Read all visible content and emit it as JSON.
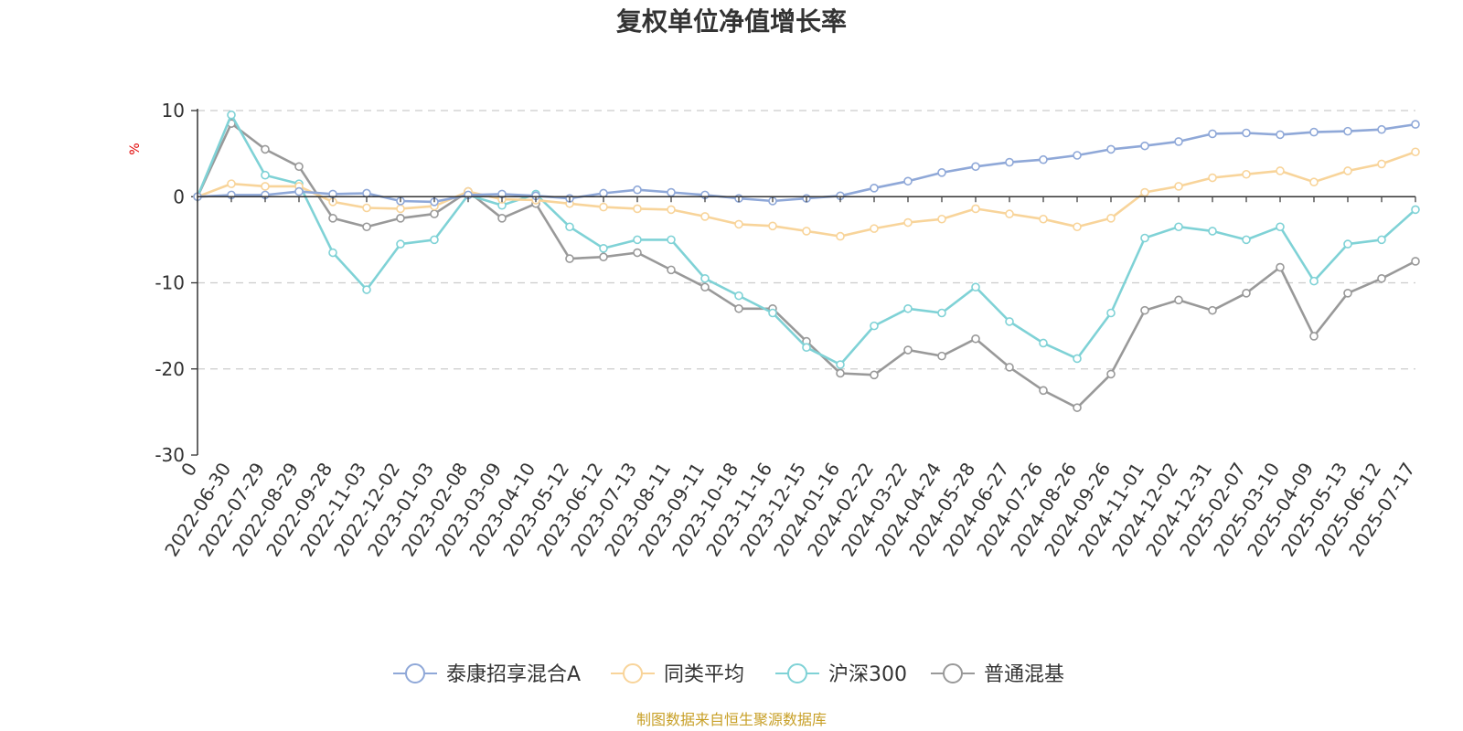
{
  "colors": {
    "fund": "#8fa8d8",
    "peer": "#f8d49a",
    "hs300": "#7fd2d6",
    "mixed": "#999999",
    "source": "#c8a028",
    "unit": "#e00000"
  },
  "chart_data": {
    "type": "line",
    "title": "复权单位净值增长率",
    "ylabel": "%",
    "ylim": [
      -30,
      10
    ],
    "yticks": [
      10,
      0,
      -10,
      -20,
      -30
    ],
    "grid": true,
    "legend_position": "bottom",
    "source": "制图数据来自恒生聚源数据库",
    "x_tick_labels": [
      "0",
      "2022-06-30",
      "2022-07-29",
      "2022-08-29",
      "2022-09-28",
      "2022-11-03",
      "2022-12-02",
      "2023-01-03",
      "2023-02-08",
      "2023-03-09",
      "2023-04-10",
      "2023-05-12",
      "2023-06-12",
      "2023-07-13",
      "2023-08-11",
      "2023-09-11",
      "2023-10-18",
      "2023-11-16",
      "2023-12-15",
      "2024-01-16",
      "2024-02-22",
      "2024-03-22",
      "2024-04-24",
      "2024-05-28",
      "2024-06-27",
      "2024-07-26",
      "2024-08-26",
      "2024-09-26",
      "2024-11-01",
      "2024-12-02",
      "2024-12-31",
      "2025-02-07",
      "2025-03-10",
      "2025-04-09",
      "2025-05-13",
      "2025-06-12",
      "2025-07-17"
    ],
    "x": [
      "0",
      "2022-06-30",
      "2022-07-29",
      "2022-08-29",
      "2022-09-28",
      "2022-11-03",
      "2022-12-02",
      "2023-01-03",
      "2023-02-08",
      "2023-03-09",
      "2023-04-10",
      "2023-05-12",
      "2023-06-12",
      "2023-07-13",
      "2023-08-11",
      "2023-09-11",
      "2023-10-18",
      "2023-11-16",
      "2023-12-15",
      "2024-01-16",
      "2024-02-22",
      "2024-03-22",
      "2024-04-24",
      "2024-05-28",
      "2024-06-27",
      "2024-07-26",
      "2024-08-26",
      "2024-09-26",
      "2024-11-01",
      "2024-12-02",
      "2024-12-31",
      "2025-02-07",
      "2025-03-10",
      "2025-04-09",
      "2025-05-13",
      "2025-06-12",
      "2025-07-17"
    ],
    "series": [
      {
        "name": "泰康招享混合A",
        "values": [
          0,
          0.2,
          0.2,
          0.6,
          0.3,
          0.4,
          -0.5,
          -0.6,
          0.2,
          0.3,
          0.1,
          -0.2,
          0.4,
          0.8,
          0.5,
          0.2,
          -0.2,
          -0.5,
          -0.2,
          0.1,
          1.0,
          1.8,
          2.8,
          3.5,
          4.0,
          4.3,
          4.8,
          5.5,
          5.9,
          6.4,
          7.3,
          7.4,
          7.2,
          7.5,
          7.6,
          7.8,
          8.4
        ]
      },
      {
        "name": "同类平均",
        "values": [
          0,
          1.5,
          1.2,
          1.2,
          -0.6,
          -1.3,
          -1.4,
          -1.1,
          0.6,
          -0.3,
          -0.4,
          -0.8,
          -1.2,
          -1.4,
          -1.5,
          -2.3,
          -3.2,
          -3.4,
          -4.0,
          -4.6,
          -3.7,
          -3.0,
          -2.6,
          -1.4,
          -2.0,
          -2.6,
          -3.5,
          -2.5,
          0.5,
          1.2,
          2.2,
          2.6,
          3.0,
          1.7,
          3.0,
          3.8,
          5.2
        ]
      },
      {
        "name": "沪深300",
        "values": [
          0,
          9.5,
          2.5,
          1.5,
          -6.5,
          -10.8,
          -5.5,
          -5.0,
          0.2,
          -1.0,
          0.3,
          -3.5,
          -6.0,
          -5.0,
          -5.0,
          -9.5,
          -11.5,
          -13.5,
          -17.5,
          -19.5,
          -15.0,
          -13.0,
          -13.5,
          -10.5,
          -14.5,
          -17.0,
          -18.8,
          -13.5,
          -4.8,
          -3.5,
          -4.0,
          -5.0,
          -3.5,
          -9.8,
          -5.5,
          -5.0,
          -1.5
        ]
      },
      {
        "name": "普通混基",
        "values": [
          0,
          8.5,
          5.5,
          3.5,
          -2.5,
          -3.5,
          -2.5,
          -2.0,
          0.6,
          -2.5,
          -0.8,
          -7.2,
          -7.0,
          -6.5,
          -8.5,
          -10.5,
          -13.0,
          -13.0,
          -16.8,
          -20.5,
          -20.7,
          -17.8,
          -18.5,
          -16.5,
          -19.8,
          -22.5,
          -24.5,
          -20.6,
          -13.2,
          -12.0,
          -13.2,
          -11.2,
          -8.2,
          -16.2,
          -11.2,
          -9.5,
          -7.5
        ]
      }
    ]
  }
}
